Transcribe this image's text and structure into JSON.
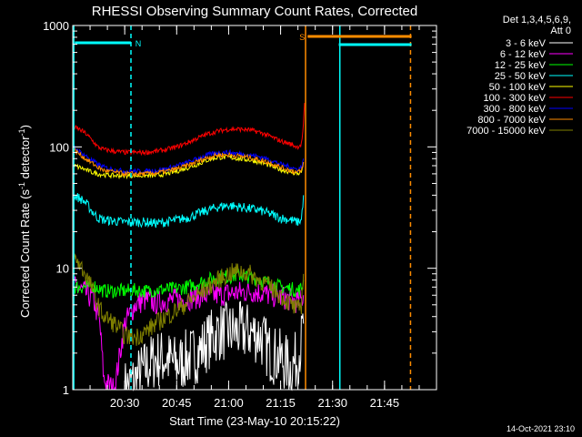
{
  "chart_data": {
    "type": "line",
    "title": "RHESSI Observing Summary Count Rates, Corrected",
    "xlabel": "Start Time (23-May-10 20:15:22)",
    "ylabel": "Corrected Count Rate (s",
    "ylabel_sup1": "-1",
    "ylabel_mid": " detector",
    "ylabel_sup2": "-1",
    "ylabel_end": ")",
    "yscale": "log",
    "ylim": [
      1,
      1000
    ],
    "xlim_minutes": [
      20.25,
      22.0
    ],
    "x_ticks": [
      {
        "label": "20:30",
        "hour": 20.5
      },
      {
        "label": "20:45",
        "hour": 20.75
      },
      {
        "label": "21:00",
        "hour": 21.0
      },
      {
        "label": "21:15",
        "hour": 21.25
      },
      {
        "label": "21:30",
        "hour": 21.5
      },
      {
        "label": "21:45",
        "hour": 21.75
      }
    ],
    "y_ticks": [
      {
        "label": "1",
        "value": 1
      },
      {
        "label": "10",
        "value": 10
      },
      {
        "label": "100",
        "value": 100
      },
      {
        "label": "1000",
        "value": 1000
      }
    ],
    "legend_title": "Det 1,3,4,5,6,9,",
    "legend_subtitle": "Att 0",
    "footer_date": "14-Oct-2021 23:10",
    "flags": [
      {
        "label": "N",
        "color": "#00ffff",
        "start_hour": 20.26,
        "end_hour": 20.53,
        "line_x_hour": 20.53
      },
      {
        "label": "S",
        "color": "#ff8c00",
        "start_hour": 21.38,
        "end_hour": 21.88,
        "line_x_hour": 21.38
      },
      {
        "label": "",
        "color": "#00ffff",
        "start_hour": 21.53,
        "end_hour": 21.88,
        "line_x_hour": 21.53
      }
    ],
    "vertical_lines": [
      {
        "hour": 20.255,
        "color": "#00ffff",
        "dash": false
      },
      {
        "hour": 20.53,
        "color": "#00ffff",
        "dash": true
      },
      {
        "hour": 21.37,
        "color": "#ff8c00",
        "dash": false
      },
      {
        "hour": 21.535,
        "color": "#00ffff",
        "dash": false
      },
      {
        "hour": 21.875,
        "color": "#ff8c00",
        "dash": true
      }
    ],
    "series": [
      {
        "name": "3 - 6 keV",
        "color": "#ffffff",
        "x": [
          20.5,
          20.55,
          20.6,
          20.65,
          20.7,
          20.75,
          20.8,
          20.85,
          20.9,
          20.95,
          21.0,
          21.05,
          21.1,
          21.15,
          21.2,
          21.25,
          21.3,
          21.33,
          21.35,
          21.36
        ],
        "y": [
          1,
          1.2,
          1.5,
          1.8,
          1.8,
          1.6,
          1.8,
          2.0,
          2.5,
          3.0,
          3.0,
          3.0,
          3.0,
          2.8,
          2.0,
          1.8,
          1.5,
          1.8,
          2.5,
          3.5
        ]
      },
      {
        "name": "6 - 12 keV",
        "color": "#ff00ff",
        "x": [
          20.255,
          20.3,
          20.35,
          20.38,
          20.4,
          20.45,
          20.5,
          20.55,
          20.6,
          20.65,
          20.7,
          20.75,
          20.8,
          20.85,
          20.9,
          20.95,
          21.0,
          21.05,
          21.1,
          21.15,
          21.2,
          21.25,
          21.3,
          21.33,
          21.35,
          21.36
        ],
        "y": [
          7,
          6.5,
          5.5,
          3.5,
          1.2,
          1.0,
          3.5,
          5.0,
          5.5,
          5.2,
          5.4,
          5.5,
          5.6,
          5.8,
          6.0,
          6.0,
          6.2,
          6.3,
          6.5,
          6.3,
          6.0,
          5.8,
          5.5,
          5.3,
          5.5,
          6.0
        ]
      },
      {
        "name": "12 - 25 keV",
        "color": "#00ff00",
        "x": [
          20.255,
          20.3,
          20.35,
          20.4,
          20.45,
          20.5,
          20.55,
          20.6,
          20.65,
          20.7,
          20.75,
          20.8,
          20.85,
          20.9,
          20.95,
          21.0,
          21.05,
          21.1,
          21.15,
          21.2,
          21.25,
          21.3,
          21.33,
          21.35,
          21.36
        ],
        "y": [
          7,
          7,
          7.2,
          6.5,
          6.5,
          6.5,
          6.6,
          6.5,
          6.6,
          6.7,
          6.8,
          7.0,
          7.5,
          8.0,
          8.5,
          8.5,
          8.8,
          8.5,
          8.0,
          7.5,
          7.0,
          6.8,
          6.5,
          6.8,
          8.0
        ]
      },
      {
        "name": "25 - 50 keV",
        "color": "#00ffff",
        "x": [
          20.255,
          20.28,
          20.31,
          20.34,
          20.37,
          20.4,
          20.45,
          20.5,
          20.55,
          20.6,
          20.65,
          20.7,
          20.75,
          20.8,
          20.85,
          20.9,
          20.95,
          21.0,
          21.05,
          21.1,
          21.15,
          21.2,
          21.25,
          21.3,
          21.33,
          21.35,
          21.36
        ],
        "y": [
          40,
          38,
          35,
          30,
          26,
          25,
          24.5,
          24,
          24,
          24,
          23.5,
          24,
          25,
          26,
          28,
          30,
          32,
          33,
          32,
          31,
          30,
          28,
          26,
          25,
          24,
          25,
          40
        ]
      },
      {
        "name": "50 - 100 keV",
        "color": "#ffff00",
        "x": [
          20.255,
          20.28,
          20.31,
          20.34,
          20.37,
          20.4,
          20.45,
          20.5,
          20.55,
          20.6,
          20.65,
          20.7,
          20.75,
          20.8,
          20.85,
          20.9,
          20.95,
          21.0,
          21.05,
          21.1,
          21.15,
          21.2,
          21.25,
          21.3,
          21.33,
          21.35,
          21.36
        ],
        "y": [
          70,
          68,
          65,
          62,
          60,
          59,
          58,
          58,
          58,
          58,
          58,
          60,
          63,
          67,
          72,
          78,
          82,
          82,
          80,
          78,
          75,
          70,
          65,
          62,
          60,
          62,
          75
        ]
      },
      {
        "name": "100 - 300 keV",
        "color": "#ff0000",
        "x": [
          20.255,
          20.28,
          20.31,
          20.34,
          20.37,
          20.4,
          20.45,
          20.5,
          20.55,
          20.6,
          20.65,
          20.7,
          20.75,
          20.8,
          20.85,
          20.9,
          20.95,
          21.0,
          21.05,
          21.1,
          21.15,
          21.2,
          21.25,
          21.3,
          21.33,
          21.35,
          21.36,
          21.365
        ],
        "y": [
          145,
          140,
          130,
          115,
          100,
          95,
          92,
          90,
          90,
          90,
          92,
          95,
          100,
          108,
          118,
          128,
          135,
          140,
          140,
          138,
          132,
          122,
          112,
          105,
          100,
          105,
          150,
          230
        ]
      },
      {
        "name": "300 - 800 keV",
        "color": "#0000ff",
        "x": [
          20.255,
          20.28,
          20.31,
          20.34,
          20.37,
          20.4,
          20.45,
          20.5,
          20.55,
          20.6,
          20.65,
          20.7,
          20.75,
          20.8,
          20.85,
          20.9,
          20.95,
          21.0,
          21.05,
          21.1,
          21.15,
          21.2,
          21.25,
          21.3,
          21.33,
          21.35,
          21.36
        ],
        "y": [
          100,
          92,
          85,
          78,
          72,
          68,
          65,
          63,
          63,
          63,
          64,
          66,
          70,
          74,
          80,
          86,
          90,
          90,
          88,
          86,
          83,
          78,
          72,
          68,
          65,
          68,
          80
        ]
      },
      {
        "name": "800 - 7000 keV",
        "color": "#ff8c00",
        "x": [
          20.255,
          20.28,
          20.31,
          20.34,
          20.37,
          20.4,
          20.45,
          20.5,
          20.55,
          20.6,
          20.65,
          20.7,
          20.75,
          20.8,
          20.85,
          20.9,
          20.95,
          21.0,
          21.05,
          21.1,
          21.15,
          21.2,
          21.25,
          21.3,
          21.33,
          21.35,
          21.36
        ],
        "y": [
          95,
          88,
          80,
          74,
          68,
          64,
          62,
          60,
          60,
          60,
          61,
          63,
          66,
          70,
          76,
          82,
          86,
          86,
          84,
          82,
          78,
          74,
          68,
          64,
          62,
          63,
          75
        ]
      },
      {
        "name": "7000 - 15000 keV",
        "color": "#808000",
        "x": [
          20.255,
          20.28,
          20.31,
          20.34,
          20.37,
          20.4,
          20.45,
          20.5,
          20.55,
          20.6,
          20.65,
          20.7,
          20.75,
          20.8,
          20.85,
          20.9,
          20.95,
          21.0,
          21.05,
          21.1,
          21.15,
          21.2,
          21.25,
          21.3,
          21.33,
          21.35,
          21.36
        ],
        "y": [
          12,
          11,
          9,
          7,
          5,
          4,
          3.5,
          2.8,
          2.7,
          3.0,
          3.5,
          4.0,
          4.5,
          5.2,
          6.0,
          7.0,
          8.0,
          9.0,
          9.5,
          9.0,
          8.0,
          7.0,
          6.0,
          5.0,
          4.5,
          5.0,
          9.0
        ]
      }
    ]
  }
}
